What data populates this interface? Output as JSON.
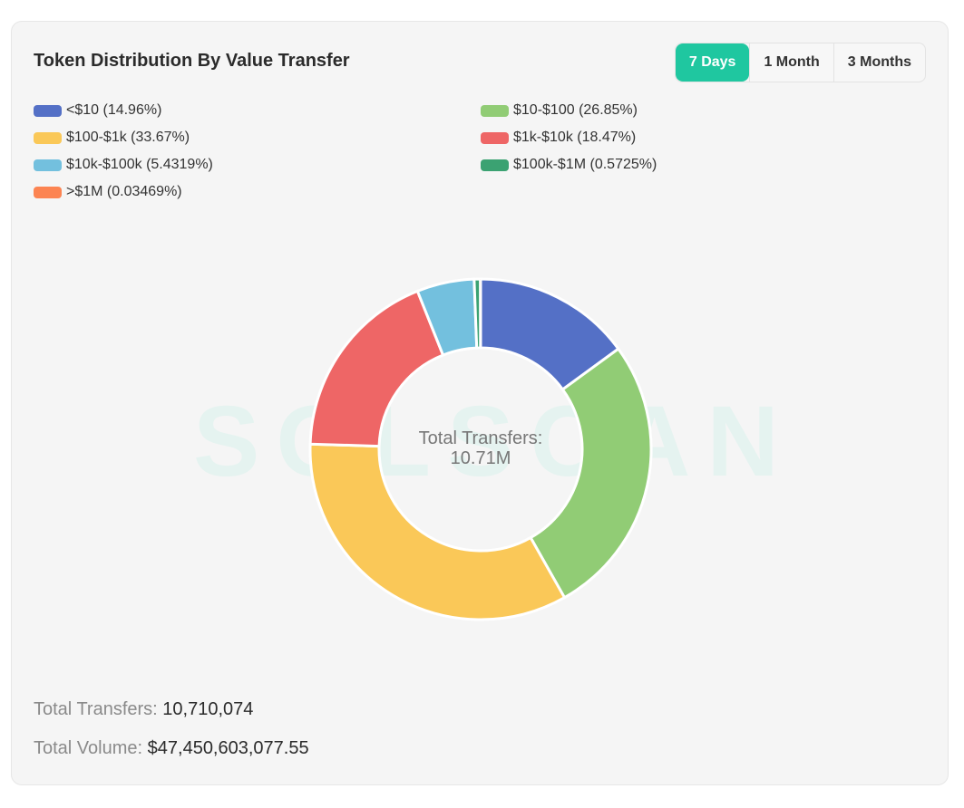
{
  "header": {
    "title": "Token Distribution By Value Transfer"
  },
  "tabs": [
    {
      "label": "7 Days",
      "active": true
    },
    {
      "label": "1 Month",
      "active": false
    },
    {
      "label": "3 Months",
      "active": false
    }
  ],
  "watermark": "SOLSCAN",
  "chart_data": {
    "type": "pie",
    "variant": "donut",
    "legend_position": "top",
    "categories": [
      "<$10",
      "$10-$100",
      "$100-$1k",
      "$1k-$10k",
      "$10k-$100k",
      "$100k-$1M",
      ">$1M"
    ],
    "legend_labels": [
      "<$10 (14.96%)",
      "$10-$100 (26.85%)",
      "$100-$1k (33.67%)",
      "$1k-$10k (18.47%)",
      "$10k-$100k (5.4319%)",
      "$100k-$1M (0.5725%)",
      ">$1M (0.03469%)"
    ],
    "values": [
      14.96,
      26.85,
      33.67,
      18.47,
      5.4319,
      0.5725,
      0.03469
    ],
    "colors": [
      "#5470c6",
      "#91cc75",
      "#fac858",
      "#ee6666",
      "#73c0de",
      "#3ba272",
      "#fc8452"
    ],
    "center_label": "Total Transfers:",
    "center_value": "10.71M"
  },
  "totals": {
    "transfers_label": "Total Transfers:",
    "transfers_value": "10,710,074",
    "volume_label": "Total Volume:",
    "volume_value": "$47,450,603,077.55"
  }
}
